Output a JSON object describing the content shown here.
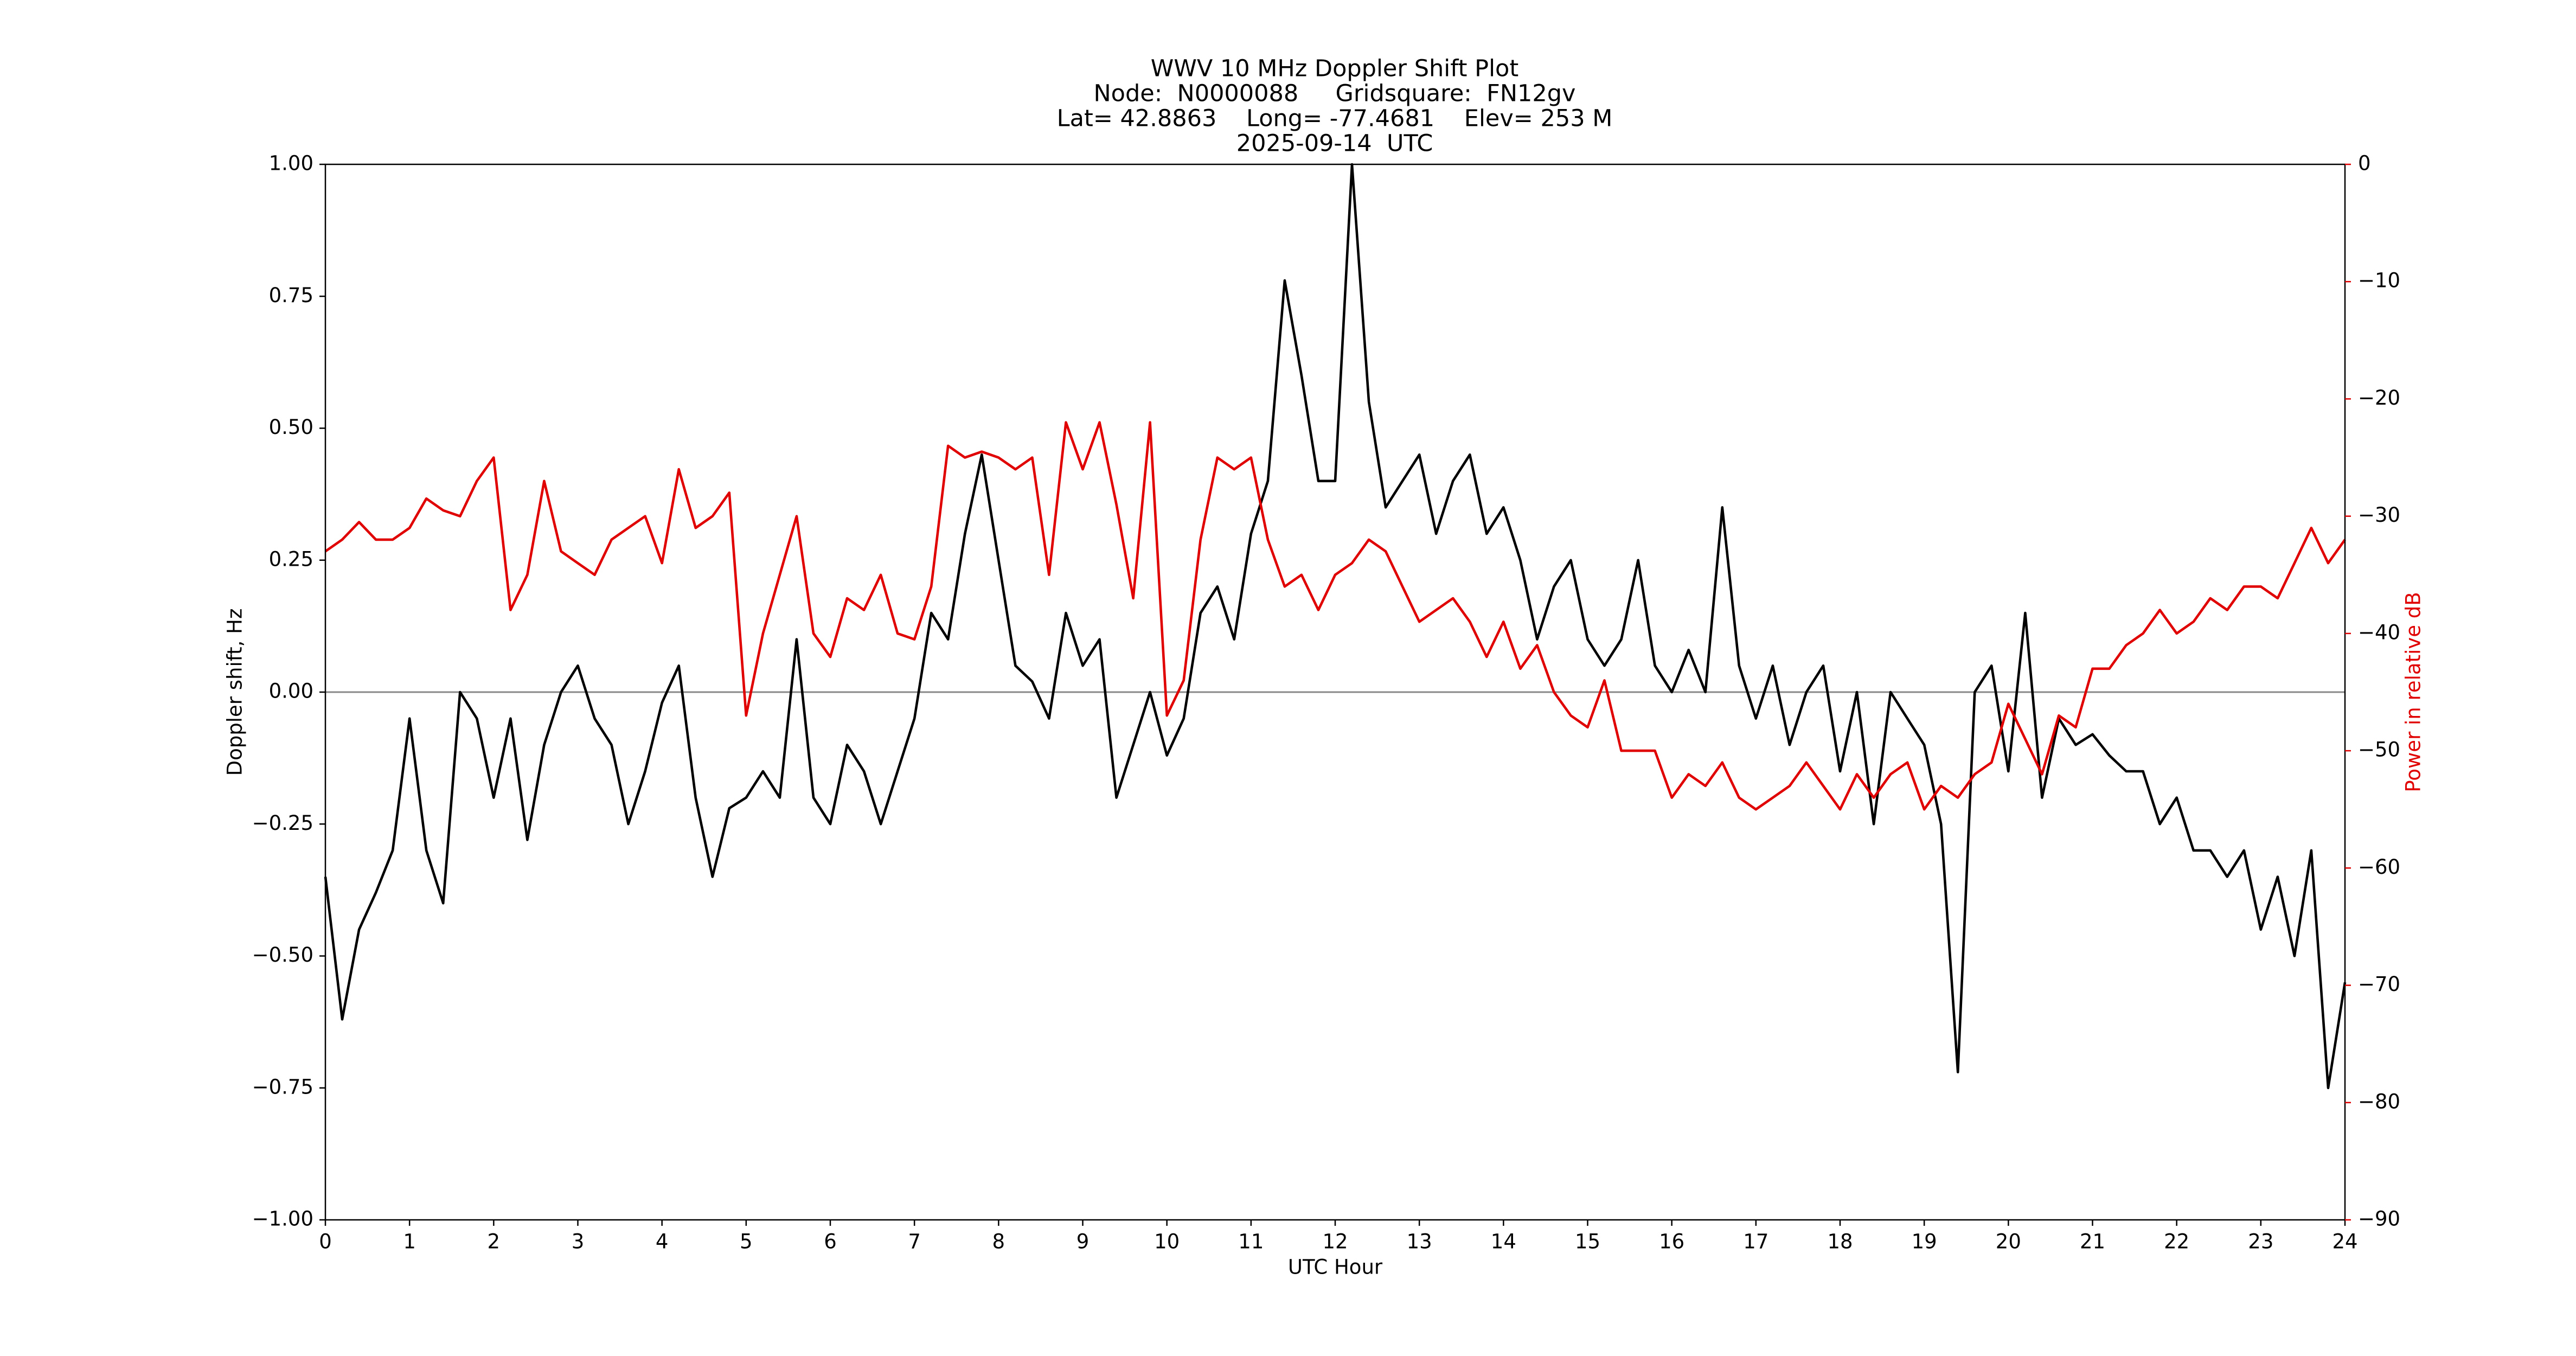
{
  "chart_data": {
    "type": "line",
    "title": "WWV 10 MHz Doppler Shift Plot",
    "subtitle": [
      "Node:  N0000088     Gridsquare:  FN12gv",
      "Lat= 42.8863    Long= -77.4681    Elev= 253 M",
      "2025-09-14  UTC"
    ],
    "x_label": "UTC Hour",
    "y_label": "Doppler shift, Hz",
    "y2_label": "Power in relative dB",
    "xlim": [
      0,
      24
    ],
    "xticks": [
      0,
      1,
      2,
      3,
      4,
      5,
      6,
      7,
      8,
      9,
      10,
      11,
      12,
      13,
      14,
      15,
      16,
      17,
      18,
      19,
      20,
      21,
      22,
      23,
      24
    ],
    "ylim": [
      -1,
      1
    ],
    "yticks": [
      {
        "value": -1,
        "label": "−1.00"
      },
      {
        "value": -0.75,
        "label": "−0.75"
      },
      {
        "value": -0.5,
        "label": "−0.50"
      },
      {
        "value": -0.25,
        "label": "−0.25"
      },
      {
        "value": 0,
        "label": "0.00"
      },
      {
        "value": 0.25,
        "label": "0.25"
      },
      {
        "value": 0.5,
        "label": "0.50"
      },
      {
        "value": 0.75,
        "label": "0.75"
      },
      {
        "value": 1,
        "label": "1.00"
      }
    ],
    "y2lim": [
      -90,
      0
    ],
    "y2ticks": [
      {
        "value": -90,
        "label": "−90"
      },
      {
        "value": -80,
        "label": "−80"
      },
      {
        "value": -70,
        "label": "−70"
      },
      {
        "value": -60,
        "label": "−60"
      },
      {
        "value": -50,
        "label": "−50"
      },
      {
        "value": -40,
        "label": "−40"
      },
      {
        "value": -30,
        "label": "−30"
      },
      {
        "value": -20,
        "label": "−20"
      },
      {
        "value": -10,
        "label": "−10"
      },
      0
    ],
    "reference_line": 0,
    "y2_color": "#e00000",
    "x": [
      0,
      0.2,
      0.4,
      0.6,
      0.8,
      1,
      1.2,
      1.4,
      1.6,
      1.8,
      2,
      2.2,
      2.4,
      2.6,
      2.8,
      3,
      3.2,
      3.4,
      3.6,
      3.8,
      4,
      4.2,
      4.4,
      4.6,
      4.8,
      5,
      5.2,
      5.4,
      5.6,
      5.8,
      6,
      6.2,
      6.4,
      6.6,
      6.8,
      7,
      7.2,
      7.4,
      7.6,
      7.8,
      8,
      8.2,
      8.4,
      8.6,
      8.8,
      9,
      9.2,
      9.4,
      9.6,
      9.8,
      10,
      10.2,
      10.4,
      10.6,
      10.8,
      11,
      11.2,
      11.4,
      11.6,
      11.8,
      12,
      12.2,
      12.4,
      12.6,
      12.8,
      13,
      13.2,
      13.4,
      13.6,
      13.8,
      14,
      14.2,
      14.4,
      14.6,
      14.8,
      15,
      15.2,
      15.4,
      15.6,
      15.8,
      16,
      16.2,
      16.4,
      16.6,
      16.8,
      17,
      17.2,
      17.4,
      17.6,
      17.8,
      18,
      18.2,
      18.4,
      18.6,
      18.8,
      19,
      19.2,
      19.4,
      19.6,
      19.8,
      20,
      20.2,
      20.4,
      20.6,
      20.8,
      21,
      21.2,
      21.4,
      21.6,
      21.8,
      22,
      22.2,
      22.4,
      22.6,
      22.8,
      23,
      23.2,
      23.4,
      23.6,
      23.8,
      24
    ],
    "series": [
      {
        "color": "#000000",
        "values": [
          -0.35,
          -0.62,
          -0.45,
          -0.38,
          -0.3,
          -0.05,
          -0.3,
          -0.4,
          0,
          -0.05,
          -0.2,
          -0.05,
          -0.28,
          -0.1,
          0,
          0.05,
          -0.05,
          -0.1,
          -0.25,
          -0.15,
          -0.02,
          0.05,
          -0.2,
          -0.35,
          -0.22,
          -0.2,
          -0.15,
          -0.2,
          0.1,
          -0.2,
          -0.25,
          -0.1,
          -0.15,
          -0.25,
          -0.15,
          -0.05,
          0.15,
          0.1,
          0.3,
          0.45,
          0.25,
          0.05,
          0.02,
          -0.05,
          0.15,
          0.05,
          0.1,
          -0.2,
          -0.1,
          0,
          -0.12,
          -0.05,
          0.15,
          0.2,
          0.1,
          0.3,
          0.4,
          0.78,
          0.6,
          0.4,
          0.4,
          1,
          0.55,
          0.35,
          0.4,
          0.45,
          0.3,
          0.4,
          0.45,
          0.3,
          0.35,
          0.25,
          0.1,
          0.2,
          0.25,
          0.1,
          0.05,
          0.1,
          0.25,
          0.05,
          0,
          0.08,
          0,
          0.35,
          0.05,
          -0.05,
          0.05,
          -0.1,
          0,
          0.05,
          -0.15,
          0,
          -0.25,
          0,
          -0.05,
          -0.1,
          -0.25,
          -0.72,
          0,
          0.05,
          -0.15,
          0.15,
          -0.2,
          -0.05,
          -0.1,
          -0.08,
          -0.12,
          -0.15,
          -0.15,
          -0.25,
          -0.2,
          -0.3,
          -0.3,
          -0.35,
          -0.3,
          -0.45,
          -0.35,
          -0.5,
          -0.3,
          -0.75,
          -0.55
        ]
      },
      {
        "color": "#e00000",
        "axis": "y2",
        "values": [
          -33,
          -32,
          -30.5,
          -32,
          -32,
          -31,
          -28.5,
          -29.5,
          -30,
          -27,
          -25,
          -38,
          -35,
          -27,
          -33,
          -34,
          -35,
          -32,
          -31,
          -30,
          -34,
          -26,
          -31,
          -30,
          -28,
          -47,
          -40,
          -35,
          -30,
          -40,
          -42,
          -37,
          -38,
          -35,
          -40,
          -40.5,
          -36,
          -24,
          -25,
          -24.5,
          -25,
          -26,
          -25,
          -35,
          -22,
          -26,
          -22,
          -29,
          -37,
          -22,
          -47,
          -44,
          -32,
          -25,
          -26,
          -25,
          -32,
          -36,
          -35,
          -38,
          -35,
          -34,
          -32,
          -33,
          -36,
          -39,
          -38,
          -37,
          -39,
          -42,
          -39,
          -43,
          -41,
          -45,
          -47,
          -48,
          -44,
          -50,
          -50,
          -50,
          -54,
          -52,
          -53,
          -51,
          -54,
          -55,
          -54,
          -53,
          -51,
          -53,
          -55,
          -52,
          -54,
          -52,
          -51,
          -55,
          -53,
          -54,
          -52,
          -51,
          -46,
          -49,
          -52,
          -47,
          -48,
          -43,
          -43,
          -41,
          -40,
          -38,
          -40,
          -39,
          -37,
          -38,
          -36,
          -36,
          -37,
          -34,
          -31,
          -34,
          -32
        ]
      }
    ]
  }
}
